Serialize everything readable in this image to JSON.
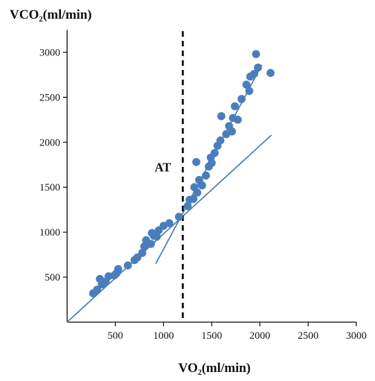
{
  "chart_data": {
    "type": "scatter",
    "title": "",
    "ylabel": "VCO₂(ml/min)",
    "xlabel": "VO₂(ml/min)",
    "xlim": [
      0,
      3000
    ],
    "ylim": [
      0,
      3250
    ],
    "xticks": [
      500,
      1000,
      1500,
      2000,
      2500,
      3000
    ],
    "yticks": [
      500,
      1000,
      1500,
      2000,
      2500,
      3000
    ],
    "grid": false,
    "legend": "none",
    "marker_color": "#4A7EBB",
    "line_color": "#4A7EBB",
    "threshold_line_color": "#000000",
    "series": [
      {
        "points": [
          [
            270,
            320
          ],
          [
            310,
            360
          ],
          [
            340,
            480
          ],
          [
            360,
            420
          ],
          [
            400,
            450
          ],
          [
            430,
            510
          ],
          [
            490,
            520
          ],
          [
            510,
            540
          ],
          [
            530,
            590
          ],
          [
            630,
            630
          ],
          [
            700,
            690
          ],
          [
            730,
            720
          ],
          [
            780,
            770
          ],
          [
            800,
            840
          ],
          [
            820,
            910
          ],
          [
            870,
            870
          ],
          [
            880,
            990
          ],
          [
            900,
            960
          ],
          [
            930,
            950
          ],
          [
            950,
            1020
          ],
          [
            1000,
            1070
          ],
          [
            1060,
            1100
          ],
          [
            1160,
            1170
          ],
          [
            1250,
            1290
          ],
          [
            1270,
            1360
          ],
          [
            1310,
            1370
          ],
          [
            1320,
            1500
          ],
          [
            1340,
            1780
          ],
          [
            1350,
            1440
          ],
          [
            1370,
            1580
          ],
          [
            1400,
            1520
          ],
          [
            1440,
            1630
          ],
          [
            1470,
            1730
          ],
          [
            1490,
            1830
          ],
          [
            1500,
            1770
          ],
          [
            1530,
            1880
          ],
          [
            1560,
            1960
          ],
          [
            1590,
            2020
          ],
          [
            1600,
            2290
          ],
          [
            1650,
            2090
          ],
          [
            1680,
            2180
          ],
          [
            1710,
            2120
          ],
          [
            1720,
            2270
          ],
          [
            1740,
            2400
          ],
          [
            1770,
            2250
          ],
          [
            1810,
            2480
          ],
          [
            1860,
            2640
          ],
          [
            1890,
            2570
          ],
          [
            1900,
            2730
          ],
          [
            1940,
            2760
          ],
          [
            1960,
            2980
          ],
          [
            1980,
            2830
          ],
          [
            2110,
            2770
          ]
        ]
      }
    ],
    "fit_lines": [
      {
        "from": [
          0,
          0
        ],
        "to": [
          2120,
          2080
        ]
      },
      {
        "from": [
          920,
          650
        ],
        "to": [
          2020,
          2860
        ]
      }
    ],
    "threshold": {
      "x": 1200,
      "label": "AT",
      "style": "dashed"
    }
  }
}
